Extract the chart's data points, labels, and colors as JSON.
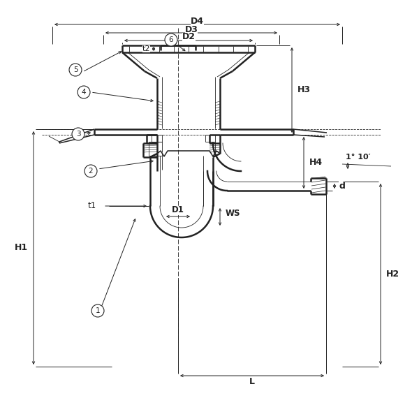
{
  "bg": "#ffffff",
  "lc": "#222222",
  "lw_thick": 1.8,
  "lw_med": 1.1,
  "lw_thin": 0.6,
  "lw_dim": 0.7,
  "fig_w": 6.0,
  "fig_h": 6.0,
  "dpi": 100,
  "labels": {
    "D4": "D4",
    "D3": "D3",
    "D2": "D2",
    "H3": "H3",
    "H4": "H4",
    "H1": "H1",
    "H2": "H2",
    "D1": "D1",
    "t1": "t1",
    "t2": "t2",
    "WS": "WS",
    "d": "d",
    "L": "L",
    "slope": "1° 10′",
    "parts": [
      "1",
      "2",
      "3",
      "4",
      "5",
      "6"
    ]
  }
}
